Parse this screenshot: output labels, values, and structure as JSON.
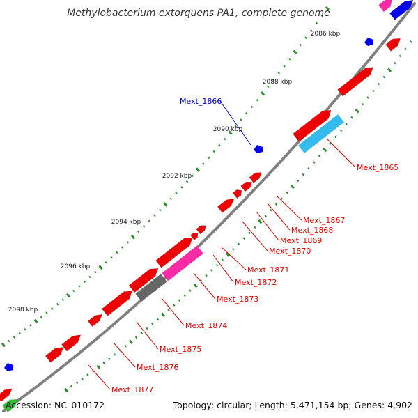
{
  "title": "Methylobacterium extorquens PA1, complete genome",
  "footer": {
    "accession": "Accession: NC_010172",
    "summary": "Topology: circular; Length: 5,471,154 bp; Genes: 4,902"
  },
  "kbp_labels": [
    "2086 kbp",
    "2088 kbp",
    "2090 kbp",
    "2092 kbp",
    "2094 kbp",
    "2096 kbp",
    "2098 kbp"
  ],
  "gene_labels": [
    {
      "text": "Mext_1865",
      "color": "#e00000"
    },
    {
      "text": "Mext_1866",
      "color": "#0000cc"
    },
    {
      "text": "Mext_1867",
      "color": "#e00000"
    },
    {
      "text": "Mext_1868",
      "color": "#e00000"
    },
    {
      "text": "Mext_1869",
      "color": "#e00000"
    },
    {
      "text": "Mext_1870",
      "color": "#e00000"
    },
    {
      "text": "Mext_1871",
      "color": "#e00000"
    },
    {
      "text": "Mext_1872",
      "color": "#e00000"
    },
    {
      "text": "Mext_1873",
      "color": "#e00000"
    },
    {
      "text": "Mext_1874",
      "color": "#e00000"
    },
    {
      "text": "Mext_1875",
      "color": "#e00000"
    },
    {
      "text": "Mext_1876",
      "color": "#e00000"
    },
    {
      "text": "Mext_1877",
      "color": "#e00000"
    }
  ],
  "colors": {
    "backbone": "#808080",
    "gene_red": "#ee0000",
    "gene_blue": "#0000ee",
    "gene_cyan": "#33bbee",
    "gene_magenta": "#ff2ba6",
    "gene_gray": "#666666",
    "gene_green": "#33bb33",
    "tick_green": "#2e8b2e"
  }
}
